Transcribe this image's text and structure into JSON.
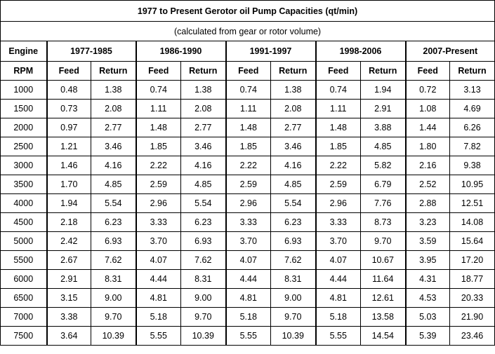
{
  "title": "1977 to Present Gerotor oil Pump Capacities (qt/min)",
  "subtitle": "(calculated from gear or rotor volume)",
  "engine_header": {
    "line1": "Engine",
    "line2": "RPM"
  },
  "groups": [
    "1977-1985",
    "1986-1990",
    "1991-1997",
    "1998-2006",
    "2007-Present"
  ],
  "subcols": {
    "feed": "Feed",
    "return": "Return"
  },
  "rows": [
    [
      "1000",
      "0.48",
      "1.38",
      "0.74",
      "1.38",
      "0.74",
      "1.38",
      "0.74",
      "1.94",
      "0.72",
      "3.13"
    ],
    [
      "1500",
      "0.73",
      "2.08",
      "1.11",
      "2.08",
      "1.11",
      "2.08",
      "1.11",
      "2.91",
      "1.08",
      "4.69"
    ],
    [
      "2000",
      "0.97",
      "2.77",
      "1.48",
      "2.77",
      "1.48",
      "2.77",
      "1.48",
      "3.88",
      "1.44",
      "6.26"
    ],
    [
      "2500",
      "1.21",
      "3.46",
      "1.85",
      "3.46",
      "1.85",
      "3.46",
      "1.85",
      "4.85",
      "1.80",
      "7.82"
    ],
    [
      "3000",
      "1.46",
      "4.16",
      "2.22",
      "4.16",
      "2.22",
      "4.16",
      "2.22",
      "5.82",
      "2.16",
      "9.38"
    ],
    [
      "3500",
      "1.70",
      "4.85",
      "2.59",
      "4.85",
      "2.59",
      "4.85",
      "2.59",
      "6.79",
      "2.52",
      "10.95"
    ],
    [
      "4000",
      "1.94",
      "5.54",
      "2.96",
      "5.54",
      "2.96",
      "5.54",
      "2.96",
      "7.76",
      "2.88",
      "12.51"
    ],
    [
      "4500",
      "2.18",
      "6.23",
      "3.33",
      "6.23",
      "3.33",
      "6.23",
      "3.33",
      "8.73",
      "3.23",
      "14.08"
    ],
    [
      "5000",
      "2.42",
      "6.93",
      "3.70",
      "6.93",
      "3.70",
      "6.93",
      "3.70",
      "9.70",
      "3.59",
      "15.64"
    ],
    [
      "5500",
      "2.67",
      "7.62",
      "4.07",
      "7.62",
      "4.07",
      "7.62",
      "4.07",
      "10.67",
      "3.95",
      "17.20"
    ],
    [
      "6000",
      "2.91",
      "8.31",
      "4.44",
      "8.31",
      "4.44",
      "8.31",
      "4.44",
      "11.64",
      "4.31",
      "18.77"
    ],
    [
      "6500",
      "3.15",
      "9.00",
      "4.81",
      "9.00",
      "4.81",
      "9.00",
      "4.81",
      "12.61",
      "4.53",
      "20.33"
    ],
    [
      "7000",
      "3.38",
      "9.70",
      "5.18",
      "9.70",
      "5.18",
      "9.70",
      "5.18",
      "13.58",
      "5.03",
      "21.90"
    ],
    [
      "7500",
      "3.64",
      "10.39",
      "5.55",
      "10.39",
      "5.55",
      "10.39",
      "5.55",
      "14.54",
      "5.39",
      "23.46"
    ]
  ]
}
